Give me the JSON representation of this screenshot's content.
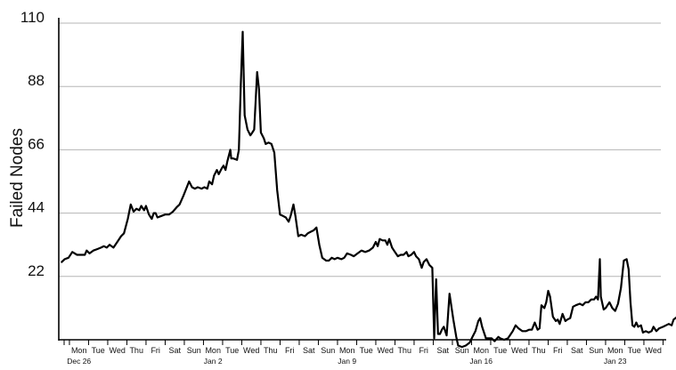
{
  "chart_data": {
    "type": "line",
    "title": "",
    "xlabel": "",
    "ylabel": "Failed Nodes",
    "ylim": [
      0,
      110
    ],
    "yticks": [
      22,
      44,
      66,
      88,
      110
    ],
    "grid": "horizontal",
    "x_tick_labels": [
      "Mon",
      "Tue",
      "Wed",
      "Thu",
      "Fri",
      "Sat",
      "Sun",
      "Mon",
      "Tue",
      "Wed",
      "Thu",
      "Fri",
      "Sat",
      "Sun",
      "Mon",
      "Tue",
      "Wed",
      "Thu",
      "Fri",
      "Sat",
      "Sun",
      "Mon",
      "Tue",
      "Wed",
      "Thu",
      "Fri",
      "Sat",
      "Sun",
      "Mon",
      "Tue",
      "Wed"
    ],
    "x_sub_labels": [
      {
        "text": "Dec 26",
        "tick": 0
      },
      {
        "text": "Jan 2",
        "tick": 7
      },
      {
        "text": "Jan 9",
        "tick": 14
      },
      {
        "text": "Jan 16",
        "tick": 21
      },
      {
        "text": "Jan 23",
        "tick": 28
      }
    ],
    "series": [
      {
        "name": "",
        "color": "#000000",
        "points": [
          [
            -0.9,
            27
          ],
          [
            -0.75,
            28
          ],
          [
            -0.55,
            28.5
          ],
          [
            -0.35,
            30.5
          ],
          [
            -0.1,
            29.5
          ],
          [
            0.15,
            29.5
          ],
          [
            0.3,
            29.5
          ],
          [
            0.4,
            31
          ],
          [
            0.55,
            30
          ],
          [
            0.75,
            31
          ],
          [
            0.95,
            31.5
          ],
          [
            1.15,
            32
          ],
          [
            1.3,
            32.5
          ],
          [
            1.45,
            32
          ],
          [
            1.6,
            33
          ],
          [
            1.8,
            32
          ],
          [
            2.0,
            34
          ],
          [
            2.2,
            36
          ],
          [
            2.35,
            37
          ],
          [
            2.55,
            42
          ],
          [
            2.7,
            47
          ],
          [
            2.85,
            44.5
          ],
          [
            3.0,
            45.5
          ],
          [
            3.15,
            45
          ],
          [
            3.25,
            46.5
          ],
          [
            3.4,
            45
          ],
          [
            3.5,
            46.5
          ],
          [
            3.65,
            43.5
          ],
          [
            3.8,
            42
          ],
          [
            3.9,
            44
          ],
          [
            4.0,
            44
          ],
          [
            4.1,
            42.5
          ],
          [
            4.3,
            43
          ],
          [
            4.5,
            43.5
          ],
          [
            4.7,
            43.5
          ],
          [
            4.9,
            44.5
          ],
          [
            5.1,
            46
          ],
          [
            5.25,
            47
          ],
          [
            5.45,
            50
          ],
          [
            5.6,
            52.5
          ],
          [
            5.75,
            55
          ],
          [
            5.9,
            53
          ],
          [
            6.05,
            52.5
          ],
          [
            6.2,
            53
          ],
          [
            6.4,
            52.5
          ],
          [
            6.55,
            53
          ],
          [
            6.7,
            52.5
          ],
          [
            6.8,
            55
          ],
          [
            6.95,
            54
          ],
          [
            7.05,
            57
          ],
          [
            7.2,
            59
          ],
          [
            7.3,
            57.5
          ],
          [
            7.45,
            59.5
          ],
          [
            7.55,
            60.5
          ],
          [
            7.65,
            59
          ],
          [
            7.75,
            62
          ],
          [
            7.9,
            66
          ],
          [
            7.95,
            63
          ],
          [
            8.05,
            63
          ],
          [
            8.25,
            62.5
          ],
          [
            8.35,
            66
          ],
          [
            8.45,
            89
          ],
          [
            8.55,
            107
          ],
          [
            8.65,
            78
          ],
          [
            8.8,
            73
          ],
          [
            8.95,
            71
          ],
          [
            9.05,
            72
          ],
          [
            9.15,
            73
          ],
          [
            9.3,
            93
          ],
          [
            9.4,
            87
          ],
          [
            9.5,
            72
          ],
          [
            9.65,
            70
          ],
          [
            9.75,
            68
          ],
          [
            9.9,
            68.5
          ],
          [
            10.05,
            68
          ],
          [
            10.2,
            65
          ],
          [
            10.35,
            52
          ],
          [
            10.5,
            43.5
          ],
          [
            10.65,
            43
          ],
          [
            10.8,
            42.5
          ],
          [
            10.95,
            41
          ],
          [
            11.05,
            43
          ],
          [
            11.2,
            47
          ],
          [
            11.3,
            43
          ],
          [
            11.45,
            36
          ],
          [
            11.6,
            36.5
          ],
          [
            11.8,
            36
          ],
          [
            11.95,
            37
          ],
          [
            12.1,
            37.5
          ],
          [
            12.25,
            38
          ],
          [
            12.4,
            39
          ],
          [
            12.55,
            33
          ],
          [
            12.7,
            28.5
          ],
          [
            12.9,
            27.5
          ],
          [
            13.05,
            27.5
          ],
          [
            13.2,
            28.5
          ],
          [
            13.35,
            28
          ],
          [
            13.5,
            28.5
          ],
          [
            13.7,
            28
          ],
          [
            13.85,
            28.5
          ],
          [
            14.0,
            30
          ],
          [
            14.2,
            29.5
          ],
          [
            14.35,
            29
          ],
          [
            14.55,
            30
          ],
          [
            14.75,
            31
          ],
          [
            14.95,
            30.5
          ],
          [
            15.15,
            31
          ],
          [
            15.35,
            32
          ],
          [
            15.5,
            34
          ],
          [
            15.6,
            32.5
          ],
          [
            15.7,
            35
          ],
          [
            15.85,
            34.5
          ],
          [
            16.0,
            34.5
          ],
          [
            16.1,
            33
          ],
          [
            16.2,
            35
          ],
          [
            16.35,
            32
          ],
          [
            16.5,
            30.5
          ],
          [
            16.65,
            29
          ],
          [
            16.8,
            29.5
          ],
          [
            16.95,
            29.5
          ],
          [
            17.1,
            30.5
          ],
          [
            17.2,
            29
          ],
          [
            17.35,
            29.5
          ],
          [
            17.5,
            30.5
          ],
          [
            17.6,
            29
          ],
          [
            17.75,
            28
          ],
          [
            17.9,
            25
          ],
          [
            18.0,
            27
          ],
          [
            18.15,
            28
          ],
          [
            18.3,
            26
          ],
          [
            18.45,
            25
          ],
          [
            18.55,
            0.5
          ],
          [
            18.65,
            21
          ],
          [
            18.75,
            2
          ],
          [
            18.85,
            2
          ],
          [
            18.95,
            3.5
          ],
          [
            19.05,
            4.5
          ],
          [
            19.2,
            1.5
          ],
          [
            19.35,
            16
          ],
          [
            19.55,
            7
          ],
          [
            19.7,
            1
          ],
          [
            19.8,
            -2
          ],
          [
            20.0,
            -2.5
          ],
          [
            20.2,
            -2
          ],
          [
            20.4,
            -1
          ],
          [
            20.55,
            1
          ],
          [
            20.7,
            3
          ],
          [
            20.85,
            6.5
          ],
          [
            20.95,
            7.5
          ],
          [
            21.05,
            4.5
          ],
          [
            21.25,
            0.5
          ],
          [
            21.4,
            0.5
          ],
          [
            21.55,
            0.5
          ],
          [
            21.7,
            -0.5
          ],
          [
            21.9,
            1
          ],
          [
            22.0,
            0.5
          ],
          [
            22.2,
            0
          ],
          [
            22.4,
            0.5
          ],
          [
            22.5,
            1.5
          ],
          [
            22.65,
            3
          ],
          [
            22.8,
            5
          ],
          [
            22.95,
            4
          ],
          [
            23.15,
            3
          ],
          [
            23.35,
            3
          ],
          [
            23.5,
            3.5
          ],
          [
            23.65,
            3.5
          ],
          [
            23.8,
            6
          ],
          [
            23.95,
            3.5
          ],
          [
            24.05,
            4
          ],
          [
            24.15,
            12
          ],
          [
            24.3,
            11
          ],
          [
            24.4,
            13
          ],
          [
            24.5,
            17
          ],
          [
            24.6,
            15
          ],
          [
            24.75,
            8
          ],
          [
            24.9,
            6.5
          ],
          [
            25.0,
            7
          ],
          [
            25.1,
            5.5
          ],
          [
            25.25,
            9
          ],
          [
            25.4,
            6.5
          ],
          [
            25.5,
            7
          ],
          [
            25.65,
            7.5
          ],
          [
            25.8,
            11.5
          ],
          [
            25.95,
            12
          ],
          [
            26.15,
            12.5
          ],
          [
            26.3,
            12
          ],
          [
            26.45,
            13
          ],
          [
            26.6,
            13
          ],
          [
            26.75,
            14
          ],
          [
            26.9,
            14
          ],
          [
            27.0,
            15
          ],
          [
            27.1,
            14
          ],
          [
            27.2,
            28
          ],
          [
            27.25,
            15
          ],
          [
            27.4,
            10.5
          ],
          [
            27.5,
            11
          ],
          [
            27.6,
            12
          ],
          [
            27.7,
            13
          ],
          [
            27.85,
            11
          ],
          [
            28.0,
            10
          ],
          [
            28.15,
            12.5
          ],
          [
            28.3,
            18
          ],
          [
            28.45,
            27.5
          ],
          [
            28.6,
            28
          ],
          [
            28.7,
            24.5
          ],
          [
            28.8,
            13
          ],
          [
            28.9,
            5
          ],
          [
            29.0,
            4.5
          ],
          [
            29.1,
            6
          ],
          [
            29.2,
            4.5
          ],
          [
            29.35,
            5
          ],
          [
            29.45,
            2.5
          ],
          [
            29.6,
            3
          ],
          [
            29.75,
            2.5
          ],
          [
            29.9,
            3
          ],
          [
            30.0,
            4.5
          ],
          [
            30.15,
            3
          ],
          [
            30.3,
            4
          ],
          [
            30.5,
            4.5
          ],
          [
            30.65,
            5
          ],
          [
            30.8,
            5.5
          ],
          [
            30.95,
            5
          ],
          [
            31.05,
            7
          ],
          [
            31.25,
            8
          ],
          [
            31.35,
            8
          ],
          [
            31.45,
            7
          ],
          [
            31.6,
            7.5
          ],
          [
            31.75,
            6.5
          ],
          [
            31.9,
            7.5
          ],
          [
            32.05,
            7
          ],
          [
            32.15,
            10
          ],
          [
            32.3,
            13
          ],
          [
            32.35,
            25
          ],
          [
            32.45,
            12
          ],
          [
            32.6,
            10
          ],
          [
            32.75,
            7
          ],
          [
            32.85,
            6.5
          ],
          [
            32.95,
            14
          ],
          [
            33.05,
            13
          ],
          [
            33.15,
            12
          ]
        ]
      }
    ]
  }
}
